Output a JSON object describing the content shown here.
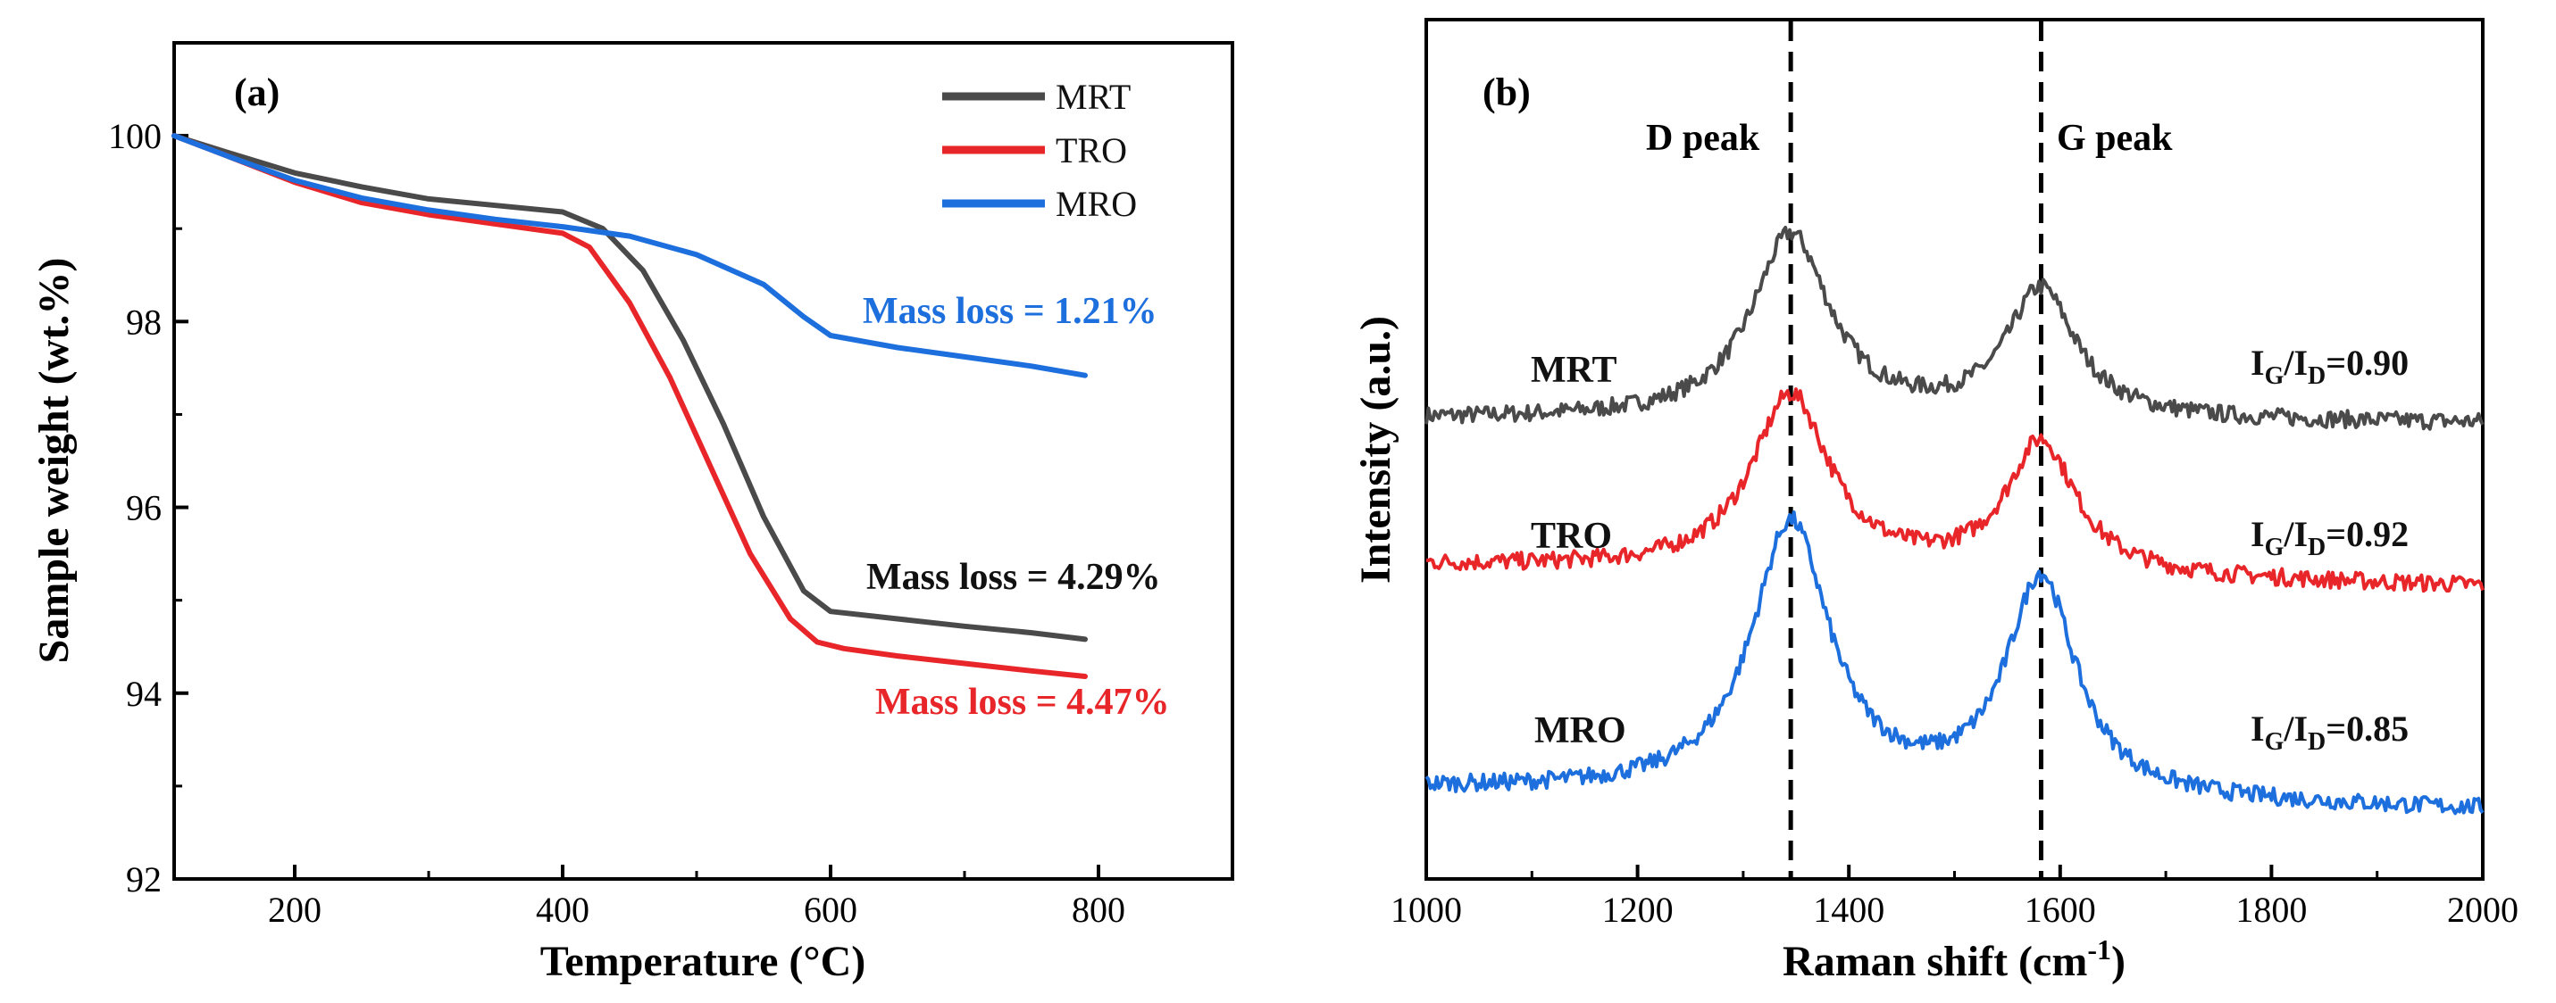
{
  "chart_data": [
    {
      "panel_label": "(a)",
      "type": "line",
      "xlabel": "Temperature (°C)",
      "ylabel": "Sample weight (wt.%)",
      "xlim": [
        110,
        900
      ],
      "ylim": [
        92,
        101
      ],
      "xticks": [
        200,
        400,
        600,
        800
      ],
      "yticks": [
        92,
        94,
        96,
        98,
        100
      ],
      "xtick_labels": [
        "200",
        "400",
        "600",
        "800"
      ],
      "ytick_labels": [
        "92",
        "94",
        "96",
        "98",
        "100"
      ],
      "legend": [
        "MRT",
        "TRO",
        "MRO"
      ],
      "legend_position": "top-right",
      "series": [
        {
          "name": "MRT",
          "color": "#4a4a4a",
          "x": [
            110,
            150,
            200,
            250,
            300,
            350,
            400,
            430,
            460,
            490,
            520,
            550,
            580,
            600,
            650,
            700,
            750,
            790
          ],
          "y": [
            100.0,
            99.82,
            99.6,
            99.45,
            99.32,
            99.25,
            99.18,
            99.0,
            98.55,
            97.8,
            96.9,
            95.9,
            95.1,
            94.88,
            94.8,
            94.72,
            94.65,
            94.58
          ]
        },
        {
          "name": "TRO",
          "color": "#e8262a",
          "x": [
            110,
            150,
            200,
            250,
            300,
            350,
            400,
            420,
            450,
            480,
            510,
            540,
            570,
            590,
            610,
            650,
            700,
            750,
            790
          ],
          "y": [
            100.0,
            99.78,
            99.5,
            99.28,
            99.15,
            99.05,
            98.95,
            98.8,
            98.2,
            97.4,
            96.45,
            95.5,
            94.8,
            94.55,
            94.48,
            94.4,
            94.32,
            94.24,
            94.18
          ]
        },
        {
          "name": "MRO",
          "color": "#1d6fdd",
          "x": [
            110,
            150,
            200,
            250,
            300,
            350,
            400,
            450,
            500,
            550,
            580,
            600,
            650,
            700,
            750,
            790
          ],
          "y": [
            100.0,
            99.78,
            99.52,
            99.33,
            99.2,
            99.1,
            99.02,
            98.92,
            98.72,
            98.4,
            98.05,
            97.85,
            97.72,
            97.62,
            97.52,
            97.42
          ]
        }
      ],
      "annotations": [
        {
          "text": "Mass loss = 1.21%",
          "color": "#1d6fdd"
        },
        {
          "text": "Mass loss = 4.29%",
          "color": "#111111"
        },
        {
          "text": "Mass loss = 4.47%",
          "color": "#e8262a"
        }
      ]
    },
    {
      "panel_label": "(b)",
      "type": "line",
      "xlabel": "Raman shift (cm",
      "xlabel_sup": "-1",
      "xlabel_close": ")",
      "ylabel": "Intensity (a.u.)",
      "xlim": [
        1000,
        2000
      ],
      "xticks": [
        1000,
        1200,
        1400,
        1600,
        1800,
        2000
      ],
      "xtick_labels": [
        "1000",
        "1200",
        "1400",
        "1600",
        "1800",
        "2000"
      ],
      "ylim": [
        0,
        10
      ],
      "y_ticks_shown": false,
      "d_peak_position": 1345,
      "g_peak_position": 1582,
      "peak_labels": [
        "D peak",
        "G peak"
      ],
      "series": [
        {
          "name": "MRT",
          "label": "MRT",
          "color": "#4a4a4a",
          "baseline": 5.35,
          "d_height": 2.15,
          "g_height": 1.5,
          "end_offset": -0.05,
          "ratio": "=0.90"
        },
        {
          "name": "TRO",
          "label": "TRO",
          "color": "#e8262a",
          "baseline": 3.65,
          "d_height": 2.05,
          "g_height": 1.55,
          "end_offset": -0.25,
          "ratio": "=0.92"
        },
        {
          "name": "MRO",
          "label": "MRO",
          "color": "#1d6fdd",
          "baseline": 1.05,
          "d_height": 3.15,
          "g_height": 2.55,
          "end_offset": -0.25,
          "ratio": "=0.85"
        }
      ],
      "ratio_label": {
        "I": "I",
        "sub_g": "G",
        "slash": "/I",
        "sub_d": "D"
      }
    }
  ]
}
